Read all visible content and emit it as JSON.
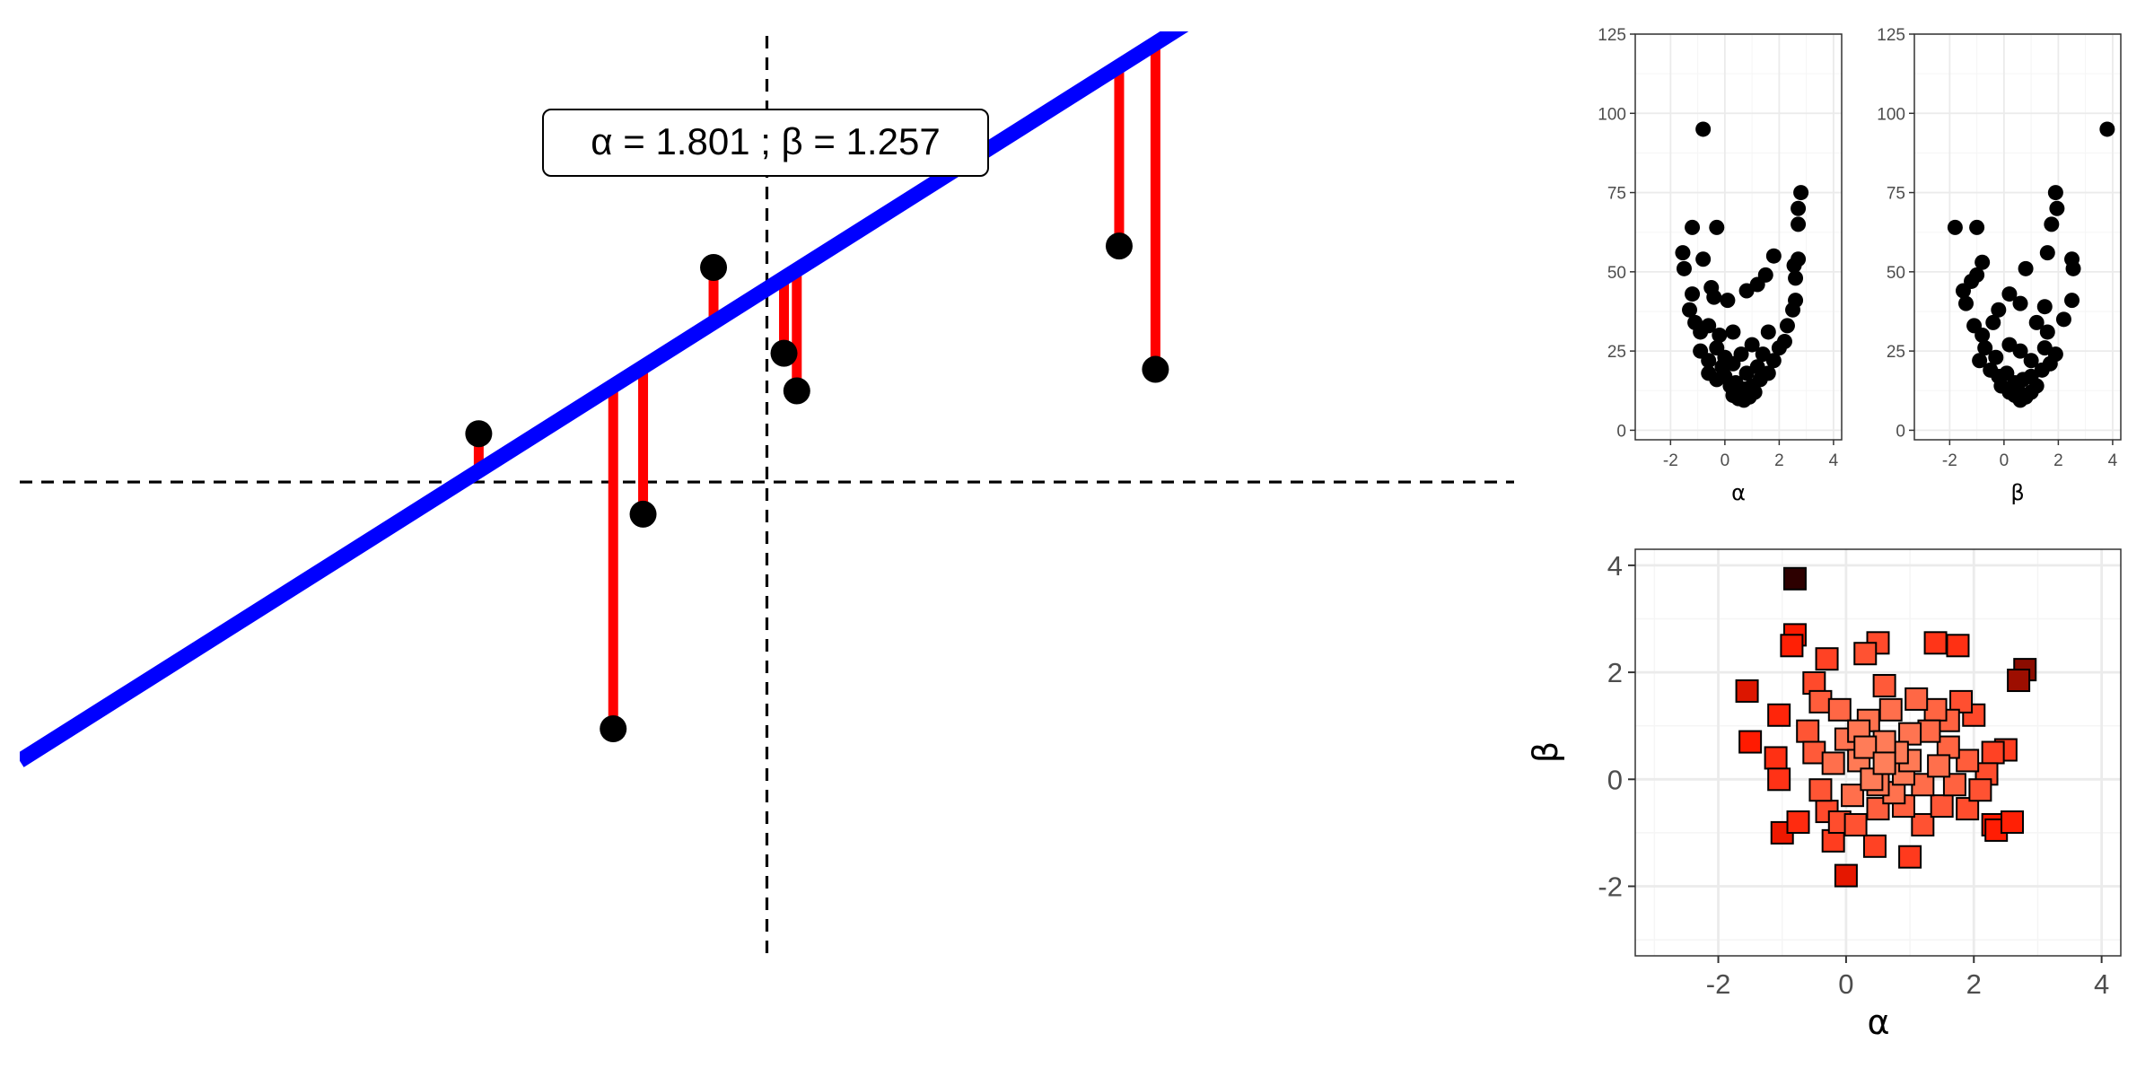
{
  "colors": {
    "fit_line": "#0000ff",
    "residual": "#ff0000",
    "point": "#000000",
    "grid_major": "#ebebeb",
    "grid_minor": "#f5f5f5",
    "scatter_low": "#ff7f5a",
    "scatter_mid": "#ff1a00",
    "scatter_high": "#2d0000"
  },
  "chart_data": [
    {
      "id": "regression",
      "type": "scatter",
      "annotation": "α =  1.801 ;  β =  1.257",
      "intercept": 1.801,
      "slope": 1.257,
      "xlim": [
        -3.5,
        3.5
      ],
      "ylim": [
        -4.5,
        4.2
      ],
      "reference_lines": {
        "x": 0,
        "y": 0
      },
      "grid": false,
      "points": [
        {
          "x": -1.35,
          "y": 0.45
        },
        {
          "x": -0.72,
          "y": -2.3
        },
        {
          "x": -0.58,
          "y": -0.3
        },
        {
          "x": -0.25,
          "y": 2.0
        },
        {
          "x": 0.08,
          "y": 1.2
        },
        {
          "x": 0.14,
          "y": 0.85
        },
        {
          "x": 1.65,
          "y": 2.2
        },
        {
          "x": 1.82,
          "y": 1.05
        }
      ]
    },
    {
      "id": "loss-alpha",
      "type": "scatter",
      "xlabel": "α",
      "ylabel": "",
      "xlim": [
        -3.3,
        4.3
      ],
      "ylim": [
        -3,
        125
      ],
      "xticks": [
        "-2",
        "0",
        "2",
        "4"
      ],
      "yticks": [
        "0",
        "25",
        "50",
        "75",
        "100",
        "125"
      ],
      "grid": true,
      "points": [
        {
          "x": -0.8,
          "y": 95
        },
        {
          "x": -1.2,
          "y": 64
        },
        {
          "x": -0.3,
          "y": 64
        },
        {
          "x": 2.8,
          "y": 75
        },
        {
          "x": 2.7,
          "y": 70
        },
        {
          "x": 2.7,
          "y": 65
        },
        {
          "x": -1.55,
          "y": 56
        },
        {
          "x": -1.5,
          "y": 51
        },
        {
          "x": -0.8,
          "y": 54
        },
        {
          "x": 2.7,
          "y": 54
        },
        {
          "x": 2.55,
          "y": 52
        },
        {
          "x": 2.6,
          "y": 48
        },
        {
          "x": 1.8,
          "y": 55
        },
        {
          "x": 1.5,
          "y": 49
        },
        {
          "x": -1.2,
          "y": 43
        },
        {
          "x": -0.5,
          "y": 45
        },
        {
          "x": -0.4,
          "y": 42
        },
        {
          "x": 0.1,
          "y": 41
        },
        {
          "x": 0.8,
          "y": 44
        },
        {
          "x": 1.2,
          "y": 46
        },
        {
          "x": 2.6,
          "y": 41
        },
        {
          "x": 2.5,
          "y": 38
        },
        {
          "x": -1.3,
          "y": 38
        },
        {
          "x": -1.1,
          "y": 34
        },
        {
          "x": -0.9,
          "y": 31
        },
        {
          "x": -0.6,
          "y": 33
        },
        {
          "x": -0.2,
          "y": 30
        },
        {
          "x": 0.3,
          "y": 31
        },
        {
          "x": 1.6,
          "y": 31
        },
        {
          "x": 2.3,
          "y": 33
        },
        {
          "x": 2.2,
          "y": 28
        },
        {
          "x": -0.9,
          "y": 25
        },
        {
          "x": -0.6,
          "y": 22
        },
        {
          "x": -0.3,
          "y": 26
        },
        {
          "x": 0.0,
          "y": 23
        },
        {
          "x": 0.3,
          "y": 21
        },
        {
          "x": 0.6,
          "y": 24
        },
        {
          "x": 1.0,
          "y": 27
        },
        {
          "x": 1.4,
          "y": 24
        },
        {
          "x": 1.8,
          "y": 22
        },
        {
          "x": 2.0,
          "y": 26
        },
        {
          "x": -0.6,
          "y": 18
        },
        {
          "x": -0.3,
          "y": 16
        },
        {
          "x": 0.0,
          "y": 17
        },
        {
          "x": 0.2,
          "y": 14
        },
        {
          "x": 0.4,
          "y": 15
        },
        {
          "x": 0.7,
          "y": 13
        },
        {
          "x": 1.0,
          "y": 14
        },
        {
          "x": 1.3,
          "y": 16
        },
        {
          "x": 1.6,
          "y": 18
        },
        {
          "x": 0.3,
          "y": 11
        },
        {
          "x": 0.5,
          "y": 10
        },
        {
          "x": 0.7,
          "y": 9.5
        },
        {
          "x": 0.9,
          "y": 10.5
        },
        {
          "x": 1.1,
          "y": 12
        },
        {
          "x": 0.6,
          "y": 12
        },
        {
          "x": -0.1,
          "y": 20
        },
        {
          "x": 1.2,
          "y": 20
        },
        {
          "x": 0.8,
          "y": 18
        }
      ]
    },
    {
      "id": "loss-beta",
      "type": "scatter",
      "xlabel": "β",
      "ylabel": "",
      "xlim": [
        -3.3,
        4.3
      ],
      "ylim": [
        -3,
        125
      ],
      "xticks": [
        "-2",
        "0",
        "2",
        "4"
      ],
      "yticks": [
        "0",
        "25",
        "50",
        "75",
        "100",
        "125"
      ],
      "grid": true,
      "points": [
        {
          "x": 3.8,
          "y": 95
        },
        {
          "x": -1.8,
          "y": 64
        },
        {
          "x": -1.0,
          "y": 64
        },
        {
          "x": 1.9,
          "y": 75
        },
        {
          "x": 1.95,
          "y": 70
        },
        {
          "x": 1.75,
          "y": 65
        },
        {
          "x": 2.5,
          "y": 54
        },
        {
          "x": 2.55,
          "y": 51
        },
        {
          "x": 1.6,
          "y": 56
        },
        {
          "x": 0.8,
          "y": 51
        },
        {
          "x": -0.8,
          "y": 53
        },
        {
          "x": -1.0,
          "y": 49
        },
        {
          "x": -1.5,
          "y": 44
        },
        {
          "x": -1.2,
          "y": 47
        },
        {
          "x": 0.2,
          "y": 43
        },
        {
          "x": 2.5,
          "y": 41
        },
        {
          "x": -1.4,
          "y": 40
        },
        {
          "x": 1.5,
          "y": 39
        },
        {
          "x": -0.2,
          "y": 38
        },
        {
          "x": 0.6,
          "y": 40
        },
        {
          "x": -1.1,
          "y": 33
        },
        {
          "x": -0.8,
          "y": 30
        },
        {
          "x": -0.4,
          "y": 34
        },
        {
          "x": 1.2,
          "y": 34
        },
        {
          "x": 1.6,
          "y": 31
        },
        {
          "x": 2.2,
          "y": 35
        },
        {
          "x": -0.7,
          "y": 26
        },
        {
          "x": -0.3,
          "y": 23
        },
        {
          "x": 0.2,
          "y": 27
        },
        {
          "x": 0.6,
          "y": 25
        },
        {
          "x": 1.0,
          "y": 22
        },
        {
          "x": 1.5,
          "y": 26
        },
        {
          "x": 1.9,
          "y": 24
        },
        {
          "x": -0.5,
          "y": 19
        },
        {
          "x": -0.2,
          "y": 17
        },
        {
          "x": 0.1,
          "y": 18
        },
        {
          "x": 0.4,
          "y": 15
        },
        {
          "x": 0.7,
          "y": 16
        },
        {
          "x": 1.0,
          "y": 17
        },
        {
          "x": 1.4,
          "y": 19
        },
        {
          "x": 0.2,
          "y": 12
        },
        {
          "x": 0.4,
          "y": 11
        },
        {
          "x": 0.6,
          "y": 9.5
        },
        {
          "x": 0.8,
          "y": 10.5
        },
        {
          "x": 1.0,
          "y": 12
        },
        {
          "x": 0.5,
          "y": 13
        },
        {
          "x": -0.1,
          "y": 14
        },
        {
          "x": 1.2,
          "y": 14
        },
        {
          "x": 1.7,
          "y": 21
        },
        {
          "x": -0.9,
          "y": 22
        }
      ]
    },
    {
      "id": "alpha-beta",
      "type": "scatter",
      "xlabel": "α",
      "ylabel": "β",
      "xlim": [
        -3.3,
        4.3
      ],
      "ylim": [
        -3.3,
        4.3
      ],
      "xticks": [
        "-2",
        "0",
        "2",
        "4"
      ],
      "yticks": [
        "-2",
        "0",
        "2",
        "4"
      ],
      "grid": true,
      "marker": "square",
      "points": [
        {
          "x": -0.8,
          "y": 3.75,
          "loss": 95
        },
        {
          "x": 2.8,
          "y": 2.05,
          "loss": 74
        },
        {
          "x": 2.7,
          "y": 1.85,
          "loss": 70
        },
        {
          "x": -1.55,
          "y": 1.65,
          "loss": 56
        },
        {
          "x": -1.5,
          "y": 0.7,
          "loss": 48
        },
        {
          "x": -1.05,
          "y": 1.2,
          "loss": 44
        },
        {
          "x": -1.0,
          "y": -1.0,
          "loss": 52
        },
        {
          "x": -0.85,
          "y": 2.5,
          "loss": 46
        },
        {
          "x": -0.8,
          "y": 2.7,
          "loss": 49
        },
        {
          "x": -0.75,
          "y": -0.8,
          "loss": 42
        },
        {
          "x": 0.0,
          "y": -1.8,
          "loss": 54
        },
        {
          "x": 1.0,
          "y": -1.45,
          "loss": 36
        },
        {
          "x": 2.3,
          "y": -0.85,
          "loss": 48
        },
        {
          "x": 2.6,
          "y": -0.8,
          "loss": 46
        },
        {
          "x": 2.35,
          "y": -0.95,
          "loss": 47
        },
        {
          "x": 1.4,
          "y": 2.55,
          "loss": 38
        },
        {
          "x": 1.75,
          "y": 2.5,
          "loss": 40
        },
        {
          "x": 0.5,
          "y": 2.55,
          "loss": 30
        },
        {
          "x": 0.3,
          "y": 2.35,
          "loss": 27
        },
        {
          "x": -0.3,
          "y": 2.25,
          "loss": 33
        },
        {
          "x": -0.5,
          "y": 1.8,
          "loss": 30
        },
        {
          "x": 0.6,
          "y": 1.75,
          "loss": 24
        },
        {
          "x": 1.8,
          "y": 1.45,
          "loss": 28
        },
        {
          "x": 2.0,
          "y": 1.2,
          "loss": 31
        },
        {
          "x": 2.3,
          "y": 0.5,
          "loss": 33
        },
        {
          "x": 2.5,
          "y": 0.55,
          "loss": 35
        },
        {
          "x": -1.1,
          "y": 0.4,
          "loss": 40
        },
        {
          "x": -1.05,
          "y": 0.0,
          "loss": 39
        },
        {
          "x": -0.6,
          "y": 0.9,
          "loss": 26
        },
        {
          "x": -0.5,
          "y": 0.5,
          "loss": 24
        },
        {
          "x": -0.4,
          "y": -0.2,
          "loss": 26
        },
        {
          "x": -0.3,
          "y": -0.6,
          "loss": 30
        },
        {
          "x": -0.1,
          "y": -0.8,
          "loss": 29
        },
        {
          "x": -0.2,
          "y": -1.15,
          "loss": 35
        },
        {
          "x": 0.15,
          "y": -0.85,
          "loss": 27
        },
        {
          "x": 0.45,
          "y": -1.25,
          "loss": 33
        },
        {
          "x": 0.5,
          "y": -0.55,
          "loss": 22
        },
        {
          "x": 0.9,
          "y": -0.5,
          "loss": 22
        },
        {
          "x": 1.2,
          "y": -0.85,
          "loss": 27
        },
        {
          "x": 1.5,
          "y": -0.5,
          "loss": 25
        },
        {
          "x": 1.9,
          "y": -0.55,
          "loss": 29
        },
        {
          "x": 2.1,
          "y": -0.2,
          "loss": 27
        },
        {
          "x": 2.2,
          "y": 0.1,
          "loss": 29
        },
        {
          "x": 1.9,
          "y": 0.35,
          "loss": 23
        },
        {
          "x": 1.6,
          "y": 0.6,
          "loss": 20
        },
        {
          "x": 1.3,
          "y": 0.9,
          "loss": 18
        },
        {
          "x": 1.0,
          "y": 0.85,
          "loss": 14
        },
        {
          "x": 0.8,
          "y": 0.5,
          "loss": 11
        },
        {
          "x": 0.6,
          "y": 0.3,
          "loss": 10
        },
        {
          "x": 0.4,
          "y": 0.0,
          "loss": 11
        },
        {
          "x": 0.2,
          "y": 0.35,
          "loss": 12
        },
        {
          "x": 0.0,
          "y": 0.75,
          "loss": 14
        },
        {
          "x": -0.2,
          "y": 0.3,
          "loss": 16
        },
        {
          "x": 0.1,
          "y": -0.3,
          "loss": 16
        },
        {
          "x": 0.35,
          "y": 1.1,
          "loss": 15
        },
        {
          "x": 0.7,
          "y": 1.3,
          "loss": 16
        },
        {
          "x": 1.1,
          "y": 1.5,
          "loss": 19
        },
        {
          "x": 1.4,
          "y": 1.3,
          "loss": 20
        },
        {
          "x": 1.45,
          "y": 0.25,
          "loss": 16
        },
        {
          "x": 1.2,
          "y": -0.1,
          "loss": 17
        },
        {
          "x": 0.9,
          "y": 0.1,
          "loss": 12
        },
        {
          "x": 0.6,
          "y": 0.7,
          "loss": 11
        },
        {
          "x": 0.3,
          "y": 0.6,
          "loss": 11
        },
        {
          "x": -0.1,
          "y": 1.3,
          "loss": 19
        },
        {
          "x": -0.4,
          "y": 1.45,
          "loss": 23
        },
        {
          "x": 1.6,
          "y": 1.1,
          "loss": 21
        },
        {
          "x": 1.7,
          "y": -0.1,
          "loss": 21
        },
        {
          "x": 0.5,
          "y": -0.1,
          "loss": 13
        },
        {
          "x": 0.75,
          "y": -0.25,
          "loss": 15
        },
        {
          "x": 1.0,
          "y": 0.35,
          "loss": 12
        },
        {
          "x": 0.2,
          "y": 0.9,
          "loss": 13
        }
      ]
    }
  ]
}
